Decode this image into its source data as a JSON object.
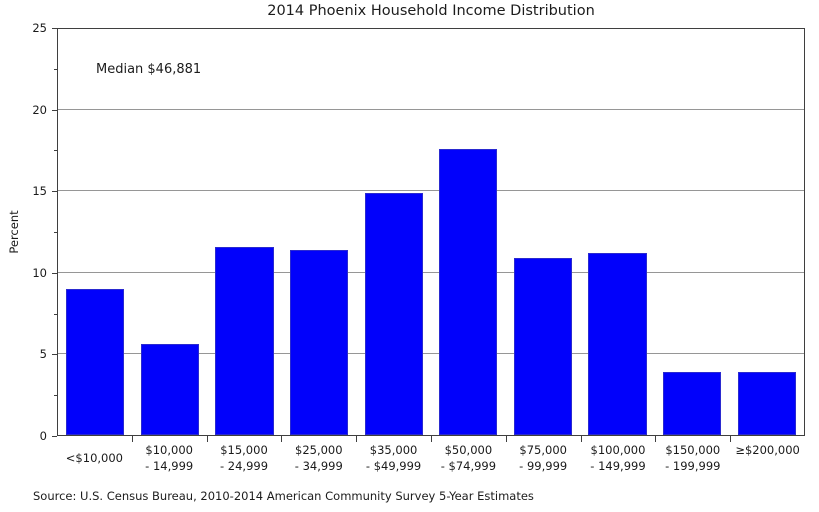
{
  "chart_data": {
    "type": "bar",
    "title": "2014 Phoenix Household Income Distribution",
    "ylabel": "Percent",
    "xlabel": "",
    "annotation": "Median $46,881",
    "source": "Source: U.S. Census Bureau, 2010-2014 American Community Survey 5-Year Estimates",
    "categories": [
      [
        "<$10,000"
      ],
      [
        "$10,000",
        "- 14,999"
      ],
      [
        "$15,000",
        "- 24,999"
      ],
      [
        "$25,000",
        "- 34,999"
      ],
      [
        "$35,000",
        "- $49,999"
      ],
      [
        "$50,000",
        "- $74,999"
      ],
      [
        "$75,000",
        "- 99,999"
      ],
      [
        "$100,000",
        "- 149,999"
      ],
      [
        "$150,000",
        "- 199,999"
      ],
      [
        "≥$200,000"
      ]
    ],
    "values": [
      9.0,
      5.6,
      11.6,
      11.4,
      14.9,
      17.6,
      10.9,
      11.2,
      3.9,
      3.9
    ],
    "ylim": [
      0,
      25
    ],
    "yticks": [
      0,
      5,
      10,
      15,
      20,
      25
    ],
    "minor_yticks": [
      2.5,
      7.5,
      12.5,
      17.5,
      22.5
    ],
    "grid": true,
    "legend": "none",
    "bar_color": "#0101fb",
    "bar_edge_color": "#2a2ad0",
    "grid_color": "#969696",
    "axis_color": "#3f3f3f"
  }
}
